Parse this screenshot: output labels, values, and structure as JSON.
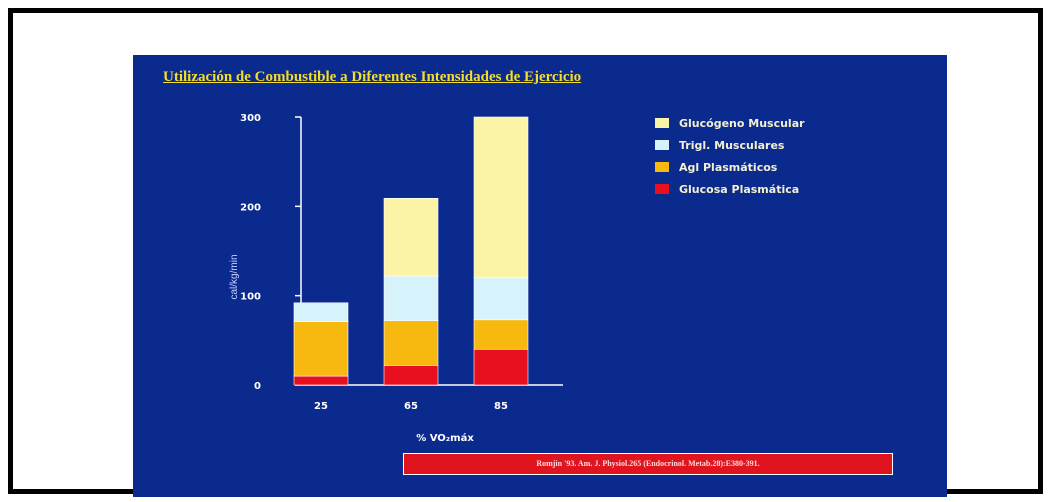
{
  "chart_data": {
    "type": "bar",
    "stacked": true,
    "title": "Utilización de Combustible a Diferentes Intensidades de Ejercicio",
    "xlabel": "% VO₂máx",
    "ylabel": "cal/kg/min",
    "ylim": [
      0,
      300
    ],
    "yticks": [
      "0",
      "100",
      "200",
      "300"
    ],
    "categories": [
      "25",
      "65",
      "85"
    ],
    "series": [
      {
        "name": "Glucosa Plasmática",
        "color": "#e8101e",
        "values": [
          10,
          22,
          40
        ]
      },
      {
        "name": "Agl Plasmáticos",
        "color": "#f7b90f",
        "values": [
          61,
          50,
          33
        ]
      },
      {
        "name": "Trigl. Musculares",
        "color": "#d6f2fb",
        "values": [
          21,
          50,
          47
        ]
      },
      {
        "name": "Glucógeno Muscular",
        "color": "#fbf3a6",
        "values": [
          0,
          87,
          180
        ]
      }
    ],
    "legend_order": [
      "Glucógeno Muscular",
      "Trigl. Musculares",
      "Agl Plasmáticos",
      "Glucosa Plasmática"
    ],
    "legend_position": "top-right",
    "grid": false
  },
  "citation": "Romjin '93. Am. J. Physiol.265 (Endocrinol. Metab.28):E380-391.",
  "colors": {
    "background": "#0b2a8e",
    "title": "#f2dc2c",
    "axis": "#ffffff"
  }
}
